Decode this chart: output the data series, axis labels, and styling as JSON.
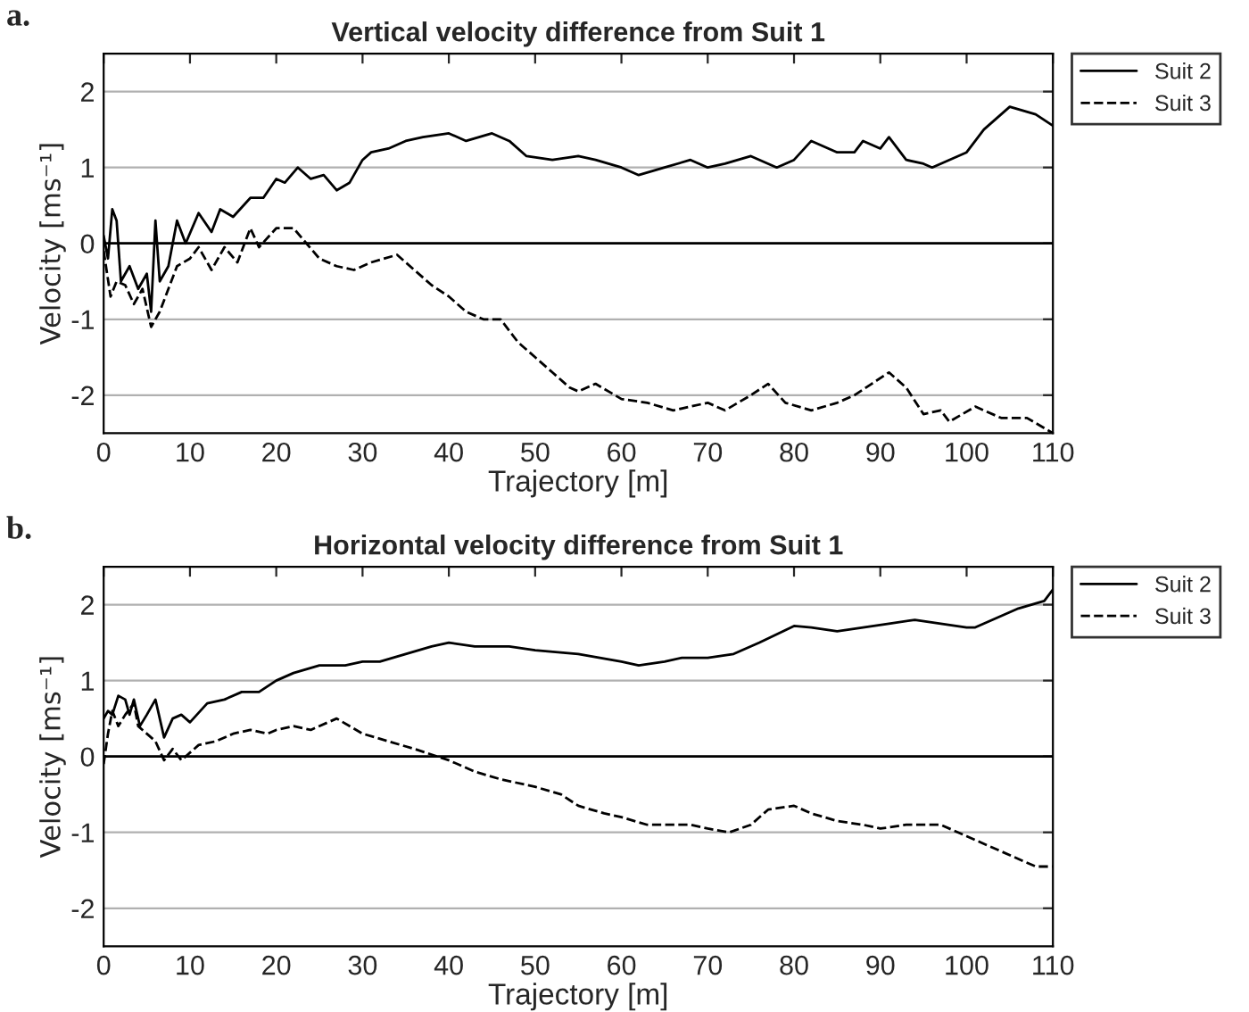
{
  "chart_data": [
    {
      "type": "line",
      "title": "Vertical velocity difference from Suit 1",
      "xlabel": "Trajectory [m]",
      "ylabel": "Velocity [ms⁻¹]",
      "annotations": [
        "a."
      ],
      "xlim": [
        0,
        110
      ],
      "xticks": [
        0,
        10,
        20,
        30,
        40,
        50,
        60,
        70,
        80,
        90,
        100,
        110
      ],
      "ylim": [
        -2.5,
        2.5
      ],
      "yticks": [
        -2,
        -1,
        0,
        1,
        2
      ],
      "grid": "y",
      "legend": "top right",
      "ref_lines": [
        {
          "axis": "y",
          "value": 0,
          "color": "#000000"
        }
      ],
      "series": [
        {
          "name": "Suit 2",
          "color": "#000000",
          "line_style": "solid",
          "x": [
            0,
            0.5,
            1,
            1.5,
            2,
            3,
            4,
            5,
            5.5,
            6,
            6.5,
            7.5,
            8.5,
            9.5,
            11,
            12.5,
            13.5,
            15,
            17,
            18.5,
            20,
            21,
            22.5,
            24,
            25.5,
            27,
            28.5,
            30,
            31,
            33,
            35,
            37,
            40,
            42,
            45,
            47,
            49,
            52,
            55,
            57,
            60,
            62,
            65,
            68,
            70,
            72,
            75,
            78,
            80,
            82,
            85,
            87,
            88,
            90,
            91,
            93,
            95,
            96,
            98,
            100,
            102,
            105,
            108,
            110
          ],
          "values": [
            0.1,
            -0.2,
            0.45,
            0.3,
            -0.5,
            -0.3,
            -0.6,
            -0.4,
            -0.9,
            0.3,
            -0.5,
            -0.3,
            0.3,
            0.0,
            0.4,
            0.15,
            0.45,
            0.35,
            0.6,
            0.6,
            0.85,
            0.8,
            1.0,
            0.85,
            0.9,
            0.7,
            0.8,
            1.1,
            1.2,
            1.25,
            1.35,
            1.4,
            1.45,
            1.35,
            1.45,
            1.35,
            1.15,
            1.1,
            1.15,
            1.1,
            1.0,
            0.9,
            1.0,
            1.1,
            1.0,
            1.05,
            1.15,
            1.0,
            1.1,
            1.35,
            1.2,
            1.2,
            1.35,
            1.25,
            1.4,
            1.1,
            1.05,
            1.0,
            1.1,
            1.2,
            1.5,
            1.8,
            1.7,
            1.55
          ]
        },
        {
          "name": "Suit 3",
          "color": "#000000",
          "line_style": "dashed",
          "x": [
            0,
            0.8,
            1.5,
            2.5,
            3.5,
            4.5,
            5.5,
            6.5,
            7.5,
            8.5,
            10,
            11,
            12.5,
            14,
            15.5,
            17,
            18,
            20,
            22,
            23.5,
            25,
            27,
            29,
            31,
            34,
            36,
            38,
            40,
            42,
            44,
            46,
            48,
            50,
            52,
            54,
            55,
            57,
            60,
            63,
            66,
            70,
            72,
            75,
            77,
            79,
            82,
            85,
            87,
            89,
            91,
            93,
            95,
            97,
            98,
            101,
            104,
            107,
            110
          ],
          "values": [
            -0.1,
            -0.7,
            -0.5,
            -0.55,
            -0.8,
            -0.6,
            -1.1,
            -0.9,
            -0.6,
            -0.3,
            -0.2,
            -0.05,
            -0.35,
            -0.05,
            -0.25,
            0.2,
            -0.05,
            0.2,
            0.2,
            0.0,
            -0.2,
            -0.3,
            -0.35,
            -0.25,
            -0.15,
            -0.35,
            -0.55,
            -0.7,
            -0.9,
            -1.0,
            -1.0,
            -1.3,
            -1.5,
            -1.7,
            -1.9,
            -1.95,
            -1.85,
            -2.05,
            -2.1,
            -2.2,
            -2.1,
            -2.2,
            -2.0,
            -1.85,
            -2.1,
            -2.2,
            -2.1,
            -2.0,
            -1.85,
            -1.7,
            -1.9,
            -2.25,
            -2.2,
            -2.35,
            -2.15,
            -2.3,
            -2.3,
            -2.5
          ]
        }
      ]
    },
    {
      "type": "line",
      "title": "Horizontal velocity difference from Suit 1",
      "xlabel": "Trajectory [m]",
      "ylabel": "Velocity [ms⁻¹]",
      "annotations": [
        "b."
      ],
      "xlim": [
        0,
        110
      ],
      "xticks": [
        0,
        10,
        20,
        30,
        40,
        50,
        60,
        70,
        80,
        90,
        100,
        110
      ],
      "ylim": [
        -2.5,
        2.5
      ],
      "yticks": [
        -2,
        -1,
        0,
        1,
        2
      ],
      "grid": "y",
      "legend": "top right",
      "ref_lines": [
        {
          "axis": "y",
          "value": 0,
          "color": "#000000"
        }
      ],
      "series": [
        {
          "name": "Suit 2",
          "color": "#000000",
          "line_style": "solid",
          "x": [
            0,
            0.5,
            1,
            1.7,
            2.5,
            3,
            3.5,
            4.2,
            5,
            6,
            7,
            8,
            9,
            10,
            12,
            14,
            16,
            18,
            20,
            22,
            25,
            28,
            30,
            32,
            35,
            38,
            40,
            43,
            47,
            50,
            55,
            60,
            62,
            65,
            67,
            70,
            73,
            76,
            80,
            82,
            85,
            88,
            91,
            94,
            97,
            100,
            101,
            103,
            106,
            109,
            110
          ],
          "values": [
            0.5,
            0.6,
            0.55,
            0.8,
            0.75,
            0.55,
            0.75,
            0.4,
            0.55,
            0.75,
            0.25,
            0.5,
            0.55,
            0.45,
            0.7,
            0.75,
            0.85,
            0.85,
            1.0,
            1.1,
            1.2,
            1.2,
            1.25,
            1.25,
            1.35,
            1.45,
            1.5,
            1.45,
            1.45,
            1.4,
            1.35,
            1.25,
            1.2,
            1.25,
            1.3,
            1.3,
            1.35,
            1.5,
            1.72,
            1.7,
            1.65,
            1.7,
            1.75,
            1.8,
            1.75,
            1.7,
            1.7,
            1.8,
            1.95,
            2.05,
            2.2
          ]
        },
        {
          "name": "Suit 3",
          "color": "#000000",
          "line_style": "dashed",
          "x": [
            0,
            0.5,
            1,
            1.7,
            2.5,
            3.5,
            4,
            5,
            6,
            7,
            8,
            9,
            10,
            11,
            13,
            15,
            17,
            19,
            20,
            22,
            24,
            27,
            30,
            33,
            36,
            40,
            43,
            46,
            50,
            53,
            55,
            58,
            60,
            63,
            65,
            68,
            70,
            72.5,
            75,
            77,
            80,
            82,
            85,
            88,
            90,
            93,
            97,
            100,
            103,
            106,
            108,
            110
          ],
          "values": [
            -0.1,
            0.3,
            0.6,
            0.4,
            0.55,
            0.7,
            0.4,
            0.3,
            0.2,
            -0.05,
            0.1,
            -0.05,
            0.05,
            0.15,
            0.2,
            0.3,
            0.35,
            0.3,
            0.35,
            0.4,
            0.35,
            0.5,
            0.3,
            0.2,
            0.1,
            -0.05,
            -0.2,
            -0.3,
            -0.4,
            -0.5,
            -0.65,
            -0.75,
            -0.8,
            -0.9,
            -0.9,
            -0.9,
            -0.95,
            -1.0,
            -0.9,
            -0.7,
            -0.65,
            -0.75,
            -0.85,
            -0.9,
            -0.95,
            -0.9,
            -0.9,
            -1.05,
            -1.2,
            -1.35,
            -1.45,
            -1.45
          ]
        }
      ]
    }
  ]
}
